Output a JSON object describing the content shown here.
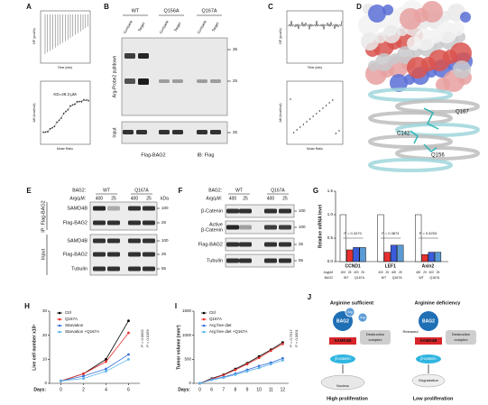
{
  "figure": {
    "A": {
      "letter": "A",
      "dp_label": "DP (µcal/s)",
      "time_label": "Time (min)",
      "dh_label": "ΔH (kcal/mol)",
      "ratio_label": "Molar Ratio",
      "kd": "KD=49.3 µM"
    },
    "B": {
      "letter": "B",
      "pulldown_label": "Arg-Probe2 pulldown",
      "input_label": "Input",
      "groups": [
        "WT",
        "Q156A",
        "Q167A"
      ],
      "lanes": [
        "Compete",
        "Target",
        "Compete",
        "Target",
        "Compete",
        "Target"
      ],
      "markers": [
        "35",
        "25",
        "25"
      ],
      "footer": [
        "Flag-BAG2",
        "IB: Flag"
      ]
    },
    "C": {
      "letter": "C",
      "dp_label": "DP (µcal/s)",
      "time_label": "Time (min)",
      "dh_label": "ΔH (kcal/mol)",
      "ratio_label": "Molar Ratio"
    },
    "D": {
      "letter": "D",
      "residues": [
        "Q167",
        "C142",
        "Q156"
      ]
    },
    "E": {
      "letter": "E",
      "bag2_label": "BAG2:",
      "groups": [
        "WT",
        "Q167A"
      ],
      "arg_label": "Arg/µM:",
      "arg_levels": [
        "400",
        "25",
        "400",
        "25"
      ],
      "ip_label": "IP: Flag-BAG2",
      "input_label": "Input",
      "rows": [
        "SAMD4B",
        "Flag-BAG2",
        "SAMD4B",
        "Flag-BAG2",
        "Tubulin"
      ],
      "kda_label": "kDa",
      "markers": [
        "100",
        "25",
        "100",
        "25",
        "55"
      ]
    },
    "F": {
      "letter": "F",
      "bag2_label": "BAG2:",
      "groups": [
        "WT",
        "Q167A"
      ],
      "arg_label": "Arg/µM:",
      "arg_levels": [
        "400",
        "25",
        "400",
        "25"
      ],
      "rows": [
        [
          "β-Catenin"
        ],
        [
          "Active",
          "β-Catenin"
        ],
        [
          "Flag-BAG2"
        ],
        [
          "Tubulin"
        ]
      ],
      "markers": [
        "100",
        "100",
        "25",
        "55"
      ]
    },
    "J": {
      "letter": "J",
      "left": {
        "title": "Arginine sufficient",
        "bag2": "BAG2",
        "arg": [
          "Arg",
          "Arg"
        ],
        "samd4b": "SAMD4B",
        "complex": [
          "Destruction",
          "complex"
        ],
        "catenin": "β-catenin",
        "nucleus": "Nucleus",
        "outcome": "High proliferation"
      },
      "right": {
        "title": "Arginine deficiency",
        "bag2": "BAG2",
        "released": "Released",
        "samd4b": "SAMD4B",
        "complex": [
          "Destruction",
          "complex"
        ],
        "catenin": "β-catenin",
        "degradation": "Degradation",
        "outcome": "Low proliferation"
      }
    }
  },
  "chart_data": [
    {
      "letter": "G",
      "type": "bar",
      "ylabel": "Relative mRNA level",
      "categories": [
        "CCND1",
        "LEF1",
        "Axin2"
      ],
      "series": [
        {
          "color": "#ffffff",
          "values": [
            1.0,
            1.0,
            1.0
          ]
        },
        {
          "color": "#e8312f",
          "values": [
            0.25,
            0.2,
            0.15
          ]
        },
        {
          "color": "#3b5bd9",
          "values": [
            0.3,
            0.35,
            0.2
          ]
        },
        {
          "color": "#5b9bd5",
          "values": [
            0.3,
            0.35,
            0.2
          ]
        }
      ],
      "ylim": [
        0,
        1.5
      ],
      "yticks": [
        {
          "value": 0,
          "label": "0.0"
        },
        {
          "value": 0.5,
          "label": "0.5"
        },
        {
          "value": 1,
          "label": "1.0"
        },
        {
          "value": 1.5,
          "label": "1.5"
        }
      ],
      "p_values": [
        "P = 0.3470",
        "P = 0.3874",
        "P = 0.5203"
      ],
      "arg_label": "Arg/µM",
      "arg_levels": [
        "400",
        "25",
        "400",
        "25"
      ],
      "bag2_label": "BAG2",
      "bag2_groups": [
        "WT",
        "Q167A"
      ]
    },
    {
      "letter": "H",
      "type": "line",
      "ylabel": "Live cell number x10⁵",
      "xlabel": "Days:",
      "x": [
        0,
        2,
        4,
        6
      ],
      "xlim": [
        -1,
        7
      ],
      "xticks": [
        0,
        2,
        4,
        6
      ],
      "ylim": [
        0,
        30
      ],
      "yticks": [
        0,
        10,
        20,
        30
      ],
      "series": [
        {
          "name": "Ctrl",
          "color": "#000000",
          "values": [
            1,
            4,
            10,
            26
          ]
        },
        {
          "name": "Q167A",
          "color": "#e8312f",
          "values": [
            1,
            4,
            9,
            21
          ]
        },
        {
          "name": "Starvation",
          "color": "#3b6fd9",
          "values": [
            1,
            3,
            6,
            12
          ]
        },
        {
          "name": "Starvation +Q167A",
          "color": "#5bb5e8",
          "values": [
            1,
            2,
            5,
            10
          ]
        }
      ],
      "annotations": [
        "P = 0.0002",
        "P = 0.0159"
      ]
    },
    {
      "letter": "I",
      "type": "line",
      "ylabel": "Tumor volume (mm³)",
      "xlabel": "Days:",
      "categories": [
        "0",
        "6",
        "7",
        "8",
        "9",
        "10",
        "11",
        "12"
      ],
      "ylim": [
        0,
        1500
      ],
      "yticks": [
        0,
        500,
        1000,
        1500
      ],
      "series": [
        {
          "name": "Ctrl",
          "color": "#000000",
          "values": [
            0,
            100,
            180,
            300,
            420,
            560,
            700,
            850
          ]
        },
        {
          "name": "Q167A",
          "color": "#e8312f",
          "values": [
            0,
            90,
            170,
            280,
            400,
            530,
            680,
            820
          ]
        },
        {
          "name": "Arg free diet",
          "color": "#3b6fd9",
          "values": [
            0,
            80,
            130,
            200,
            280,
            360,
            430,
            520
          ]
        },
        {
          "name": "Arg free diet +Q167A",
          "color": "#5bb5e8",
          "values": [
            0,
            70,
            120,
            180,
            250,
            320,
            400,
            480
          ]
        }
      ],
      "annotations": [
        "P = 0.7517",
        "P < 0.0001"
      ]
    }
  ]
}
